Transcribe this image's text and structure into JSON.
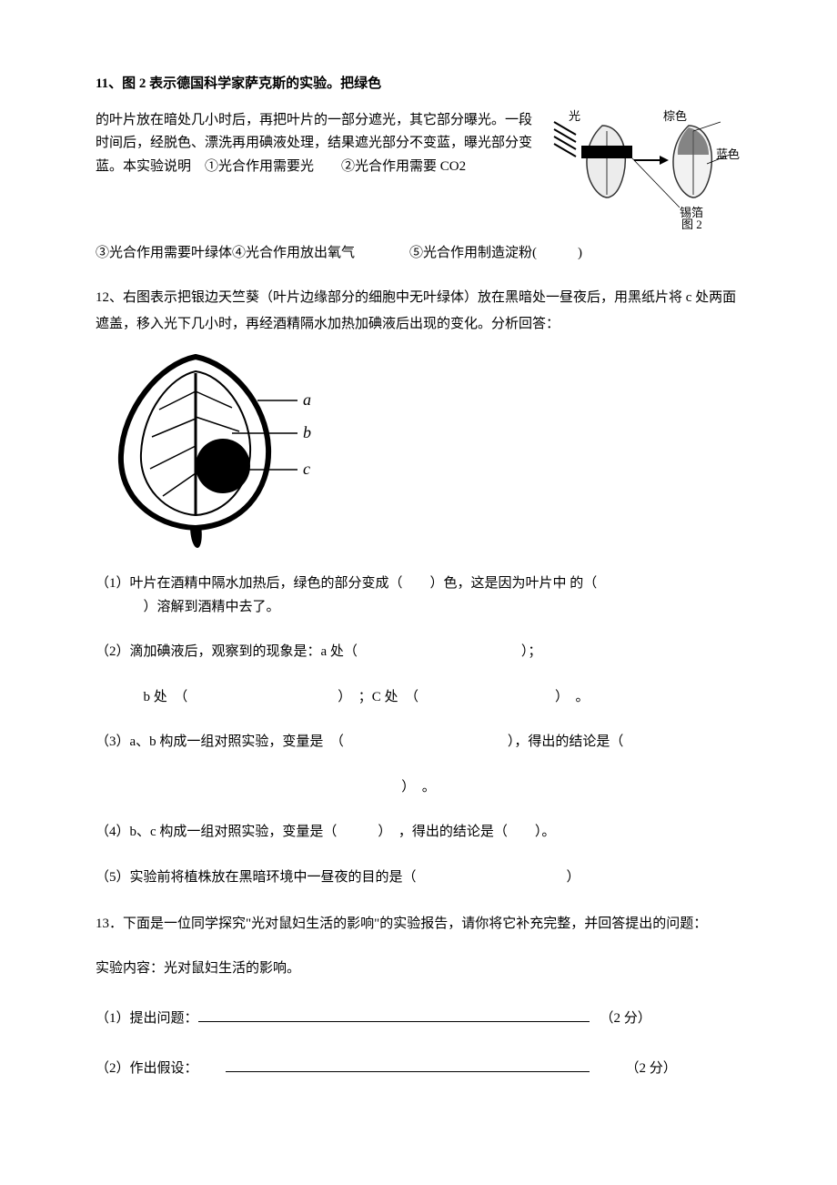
{
  "q11": {
    "header": "11、图 2 表示德国科学家萨克斯的实验。把绿色",
    "body": "的叶片放在暗处几小时后，再把叶片的一部分遮光，其它部分曝光。一段时间后，经脱色、漂洗再用碘液处理，结果遮光部分不变蓝，曝光部分变蓝。本实验说明　①光合作用需要光　　②光合作用需要 CO2",
    "line2": "③光合作用需要叶绿体④光合作用放出氧气　　　　⑤光合作用制造淀粉(　　　)",
    "figure": {
      "label_light": "光",
      "label_brown": "棕色",
      "label_blue": "蓝色",
      "label_foil": "锡箔",
      "caption": "图 2",
      "colors": {
        "brown_text": "#000000",
        "blue_text": "#000000",
        "leaf_fill": "#e8e8e8",
        "leaf_stroke": "#333333",
        "arrow": "#000000"
      }
    }
  },
  "q12": {
    "header": "12、右图表示把银边天竺葵（叶片边缘部分的细胞中无叶绿体）放在黑暗处一昼夜后，用黑纸片将 c 处两面遮盖，移入光下几小时，再经酒精隔水加热加碘液后出现的变化。分析回答：",
    "diagram": {
      "label_a": "a",
      "label_b": "b",
      "label_c": "c"
    },
    "sub1_line1": "（1）叶片在酒精中隔水加热后，绿色的部分变成（　　）色，这是因为叶片中 的（",
    "sub1_line2": "）溶解到酒精中去了。",
    "sub2": "（2）滴加碘液后，观察到的现象是：a 处（　　　　　　　　　　　　）；",
    "sub2b": "b 处　（　　　　　　　　　　　）　；C 处　（　　　　　　　　　　）　。",
    "sub3": "（3）a、b 构成一组对照实验，变量是　（　　　　　　　　　　　　），得出的结论是（",
    "sub3_close": "）　。",
    "sub4": "（4）b、c 构成一组对照实验，变量是（　　　）　，得出的结论是（　　）。",
    "sub5": "（5）实验前将植株放在黑暗环境中一昼夜的目的是（　　　　　　　　　　　）"
  },
  "q13": {
    "header": "13．下面是一位同学探究\"光对鼠妇生活的影响\"的实验报告，请你将它补充完整，并回答提出的问题：",
    "content_line": "实验内容：光对鼠妇生活的影响。",
    "sub1_label": "（1）提出问题：",
    "sub2_label": "（2）作出假设：",
    "score": "（2 分）"
  },
  "layout": {
    "fill_line_1_width": 430,
    "fill_line_2_width": 400,
    "fill_gap_2": 30
  }
}
